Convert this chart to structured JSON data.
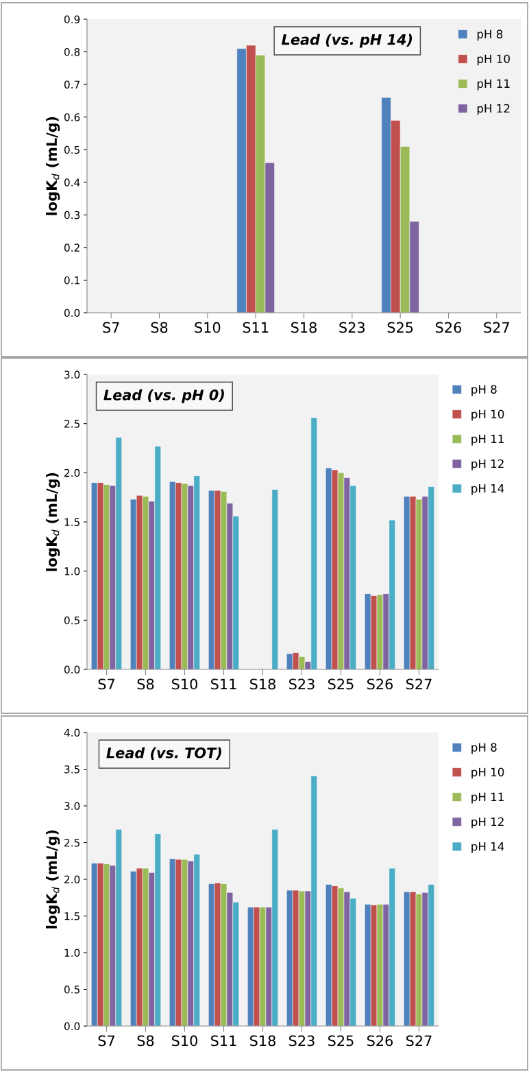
{
  "chart_data": [
    {
      "type": "bar",
      "title": "Lead (vs. pH 14)",
      "ylabel": "logK$_{d}$ (mL/g)",
      "categories": [
        "S7",
        "S8",
        "S10",
        "S11",
        "S18",
        "S23",
        "S25",
        "S26",
        "S27"
      ],
      "ylim": [
        0.0,
        0.9
      ],
      "yticks": [
        {
          "value": 0,
          "label": "0.0"
        },
        0.1,
        0.2,
        0.3,
        0.4,
        0.5,
        0.6,
        0.7,
        0.8,
        0.9
      ],
      "grid": false,
      "legend": "top right",
      "series": [
        {
          "name": "pH 8",
          "color": "#4f81bd",
          "values": [
            null,
            null,
            null,
            0.81,
            null,
            null,
            0.66,
            null,
            null
          ]
        },
        {
          "name": "pH 10",
          "color": "#c0504d",
          "values": [
            null,
            null,
            null,
            0.82,
            null,
            null,
            0.59,
            null,
            null
          ]
        },
        {
          "name": "pH 11",
          "color": "#9bbb59",
          "values": [
            null,
            null,
            null,
            0.79,
            null,
            null,
            0.51,
            null,
            null
          ]
        },
        {
          "name": "pH 12",
          "color": "#8064a2",
          "values": [
            null,
            null,
            null,
            0.46,
            null,
            null,
            0.28,
            null,
            null
          ]
        }
      ]
    },
    {
      "type": "bar",
      "title": "Lead (vs. pH 0)",
      "ylabel": "logK$_{d}$ (mL/g)",
      "categories": [
        "S7",
        "S8",
        "S10",
        "S11",
        "S18",
        "S23",
        "S25",
        "S26",
        "S27"
      ],
      "ylim": [
        0.0,
        3.0
      ],
      "yticks": [
        {
          "value": 0,
          "label": "0.0"
        },
        0.5,
        {
          "value": 1,
          "label": "1.0"
        },
        1.5,
        {
          "value": 2,
          "label": "2.0"
        },
        2.5,
        {
          "value": 3,
          "label": "3.0"
        }
      ],
      "grid": false,
      "legend": "right",
      "series": [
        {
          "name": "pH 8",
          "color": "#4f81bd",
          "values": [
            1.9,
            1.73,
            1.91,
            1.82,
            null,
            0.16,
            2.05,
            0.77,
            1.76
          ]
        },
        {
          "name": "pH 10",
          "color": "#c0504d",
          "values": [
            1.9,
            1.77,
            1.9,
            1.82,
            null,
            0.17,
            2.03,
            0.75,
            1.76
          ]
        },
        {
          "name": "pH 11",
          "color": "#9bbb59",
          "values": [
            1.88,
            1.76,
            1.89,
            1.81,
            null,
            0.13,
            2.0,
            0.76,
            1.73
          ]
        },
        {
          "name": "pH 12",
          "color": "#8064a2",
          "values": [
            1.87,
            1.71,
            1.87,
            1.69,
            null,
            0.08,
            1.95,
            0.77,
            1.76
          ]
        },
        {
          "name": "pH 14",
          "color": "#4bacc6",
          "values": [
            2.36,
            2.27,
            1.97,
            1.56,
            1.83,
            2.56,
            1.87,
            1.52,
            1.86
          ]
        }
      ]
    },
    {
      "type": "bar",
      "title": "Lead (vs. TOT)",
      "ylabel": "logK$_{d}$ (mL/g)",
      "categories": [
        "S7",
        "S8",
        "S10",
        "S11",
        "S18",
        "S23",
        "S25",
        "S26",
        "S27"
      ],
      "ylim": [
        0.0,
        4.0
      ],
      "yticks": [
        {
          "value": 0,
          "label": "0.0"
        },
        0.5,
        {
          "value": 1,
          "label": "1.0"
        },
        1.5,
        {
          "value": 2,
          "label": "2.0"
        },
        2.5,
        {
          "value": 3,
          "label": "3.0"
        },
        3.5,
        {
          "value": 4,
          "label": "4.0"
        }
      ],
      "grid": false,
      "legend": "right",
      "series": [
        {
          "name": "pH 8",
          "color": "#4f81bd",
          "values": [
            2.22,
            2.11,
            2.28,
            1.94,
            1.62,
            1.85,
            1.93,
            1.66,
            1.83
          ]
        },
        {
          "name": "pH 10",
          "color": "#c0504d",
          "values": [
            2.22,
            2.15,
            2.27,
            1.95,
            1.62,
            1.85,
            1.91,
            1.65,
            1.83
          ]
        },
        {
          "name": "pH 11",
          "color": "#9bbb59",
          "values": [
            2.21,
            2.15,
            2.27,
            1.94,
            1.62,
            1.84,
            1.88,
            1.66,
            1.8
          ]
        },
        {
          "name": "pH 12",
          "color": "#8064a2",
          "values": [
            2.19,
            2.09,
            2.25,
            1.82,
            1.62,
            1.84,
            1.83,
            1.66,
            1.82
          ]
        },
        {
          "name": "pH 14",
          "color": "#4bacc6",
          "values": [
            2.68,
            2.62,
            2.34,
            1.69,
            2.68,
            3.41,
            1.74,
            2.15,
            1.93
          ]
        }
      ]
    }
  ]
}
